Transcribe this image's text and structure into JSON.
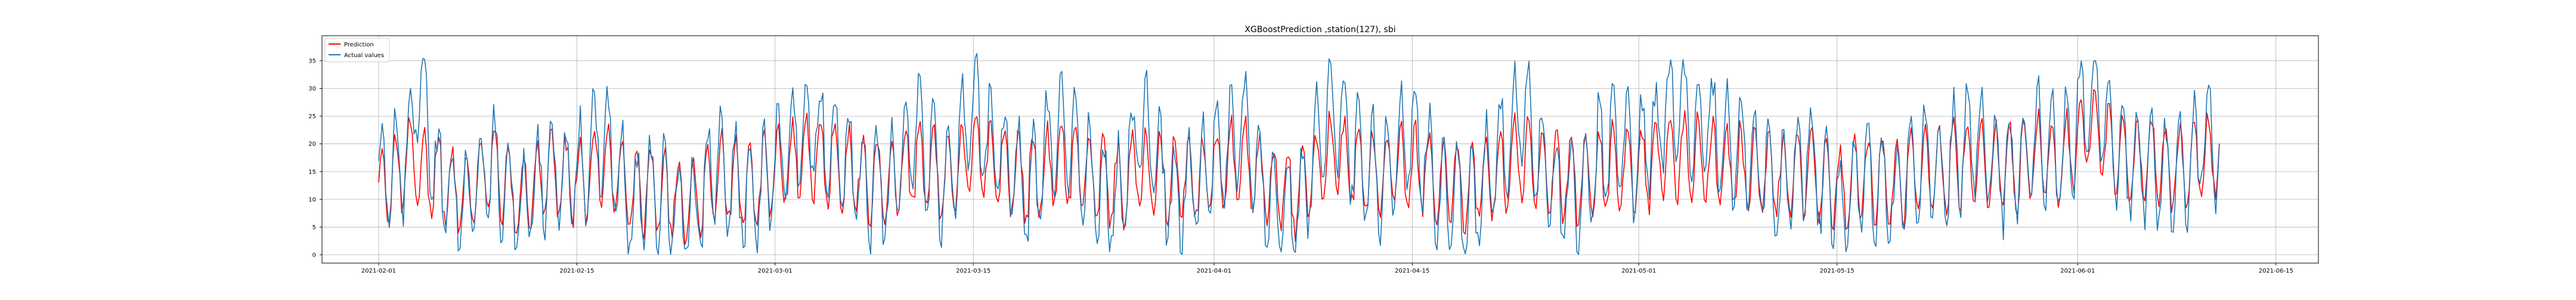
{
  "chart_data": {
    "type": "line",
    "title": "XGBoostPrediction ,station(127), sbi",
    "xlabel": "",
    "ylabel": "",
    "x_range": [
      "2021-01-28",
      "2021-06-18"
    ],
    "ylim": [
      -1.5,
      39.5
    ],
    "y_ticks": [
      0,
      5,
      10,
      15,
      20,
      25,
      30,
      35
    ],
    "x_ticks": [
      "2021-02-01",
      "2021-02-15",
      "2021-03-01",
      "2021-03-15",
      "2021-04-01",
      "2021-04-15",
      "2021-05-01",
      "2021-05-15",
      "2021-06-01",
      "2021-06-15"
    ],
    "grid": true,
    "legend_position": "top-left",
    "data_start": "2021-02-01",
    "data_end": "2021-06-11",
    "series": [
      {
        "name": "Prediction",
        "color": "#ff0000",
        "points": [
          [
            "2021-02-01",
            11
          ],
          [
            "2021-02-03",
            17
          ],
          [
            "2021-02-05",
            14
          ],
          [
            "2021-02-07",
            10
          ],
          [
            "2021-02-09",
            16
          ],
          [
            "2021-02-11",
            9
          ],
          [
            "2021-02-13",
            15
          ],
          [
            "2021-02-15",
            13
          ],
          [
            "2021-02-17",
            17
          ],
          [
            "2021-02-19",
            11
          ],
          [
            "2021-02-21",
            12
          ],
          [
            "2021-02-23",
            9
          ],
          [
            "2021-02-25",
            15
          ],
          [
            "2021-02-27",
            12
          ],
          [
            "2021-03-01",
            15
          ],
          [
            "2021-03-03",
            18
          ],
          [
            "2021-03-05",
            16
          ],
          [
            "2021-03-07",
            14
          ],
          [
            "2021-03-09",
            13
          ],
          [
            "2021-03-11",
            17
          ],
          [
            "2021-03-13",
            14
          ],
          [
            "2021-03-15",
            18
          ],
          [
            "2021-03-17",
            16
          ],
          [
            "2021-03-19",
            13
          ],
          [
            "2021-03-21",
            17
          ],
          [
            "2021-03-23",
            15
          ],
          [
            "2021-03-25",
            12
          ],
          [
            "2021-03-27",
            16
          ],
          [
            "2021-03-29",
            13
          ],
          [
            "2021-04-01",
            15
          ],
          [
            "2021-04-03",
            17
          ],
          [
            "2021-04-05",
            12
          ],
          [
            "2021-04-07",
            11
          ],
          [
            "2021-04-09",
            18
          ],
          [
            "2021-04-11",
            16
          ],
          [
            "2021-04-13",
            14
          ],
          [
            "2021-04-15",
            17
          ],
          [
            "2021-04-17",
            13
          ],
          [
            "2021-04-19",
            12
          ],
          [
            "2021-04-21",
            15
          ],
          [
            "2021-04-23",
            18
          ],
          [
            "2021-04-25",
            14
          ],
          [
            "2021-04-27",
            13
          ],
          [
            "2021-04-29",
            16
          ],
          [
            "2021-05-01",
            15
          ],
          [
            "2021-05-03",
            18
          ],
          [
            "2021-05-05",
            17
          ],
          [
            "2021-05-07",
            16
          ],
          [
            "2021-05-09",
            15
          ],
          [
            "2021-05-11",
            14
          ],
          [
            "2021-05-13",
            15
          ],
          [
            "2021-05-15",
            12
          ],
          [
            "2021-05-17",
            14
          ],
          [
            "2021-05-19",
            13
          ],
          [
            "2021-05-21",
            15
          ],
          [
            "2021-05-23",
            16
          ],
          [
            "2021-05-25",
            17
          ],
          [
            "2021-05-27",
            15
          ],
          [
            "2021-05-29",
            18
          ],
          [
            "2021-05-31",
            17
          ],
          [
            "2021-06-02",
            24
          ],
          [
            "2021-06-04",
            18
          ],
          [
            "2021-06-06",
            17
          ],
          [
            "2021-06-08",
            15
          ],
          [
            "2021-06-10",
            18
          ],
          [
            "2021-06-11",
            17
          ]
        ]
      },
      {
        "name": "Actual values",
        "color": "#1f77b4",
        "points": [
          [
            "2021-02-01",
            12
          ],
          [
            "2021-02-02",
            16
          ],
          [
            "2021-02-03",
            18
          ],
          [
            "2021-02-04",
            33
          ],
          [
            "2021-02-05",
            14
          ],
          [
            "2021-02-07",
            8
          ],
          [
            "2021-02-09",
            16
          ],
          [
            "2021-02-11",
            7
          ],
          [
            "2021-02-13",
            16
          ],
          [
            "2021-02-15",
            14
          ],
          [
            "2021-02-17",
            22
          ],
          [
            "2021-02-19",
            8
          ],
          [
            "2021-02-21",
            13
          ],
          [
            "2021-02-23",
            6
          ],
          [
            "2021-02-25",
            18
          ],
          [
            "2021-02-27",
            10
          ],
          [
            "2021-03-01",
            17
          ],
          [
            "2021-03-03",
            24
          ],
          [
            "2021-03-05",
            18
          ],
          [
            "2021-03-07",
            14
          ],
          [
            "2021-03-09",
            11
          ],
          [
            "2021-03-11",
            24
          ],
          [
            "2021-03-13",
            12
          ],
          [
            "2021-03-15",
            26
          ],
          [
            "2021-03-17",
            18
          ],
          [
            "2021-03-19",
            10
          ],
          [
            "2021-03-21",
            25
          ],
          [
            "2021-03-23",
            14
          ],
          [
            "2021-03-25",
            8
          ],
          [
            "2021-03-27",
            24
          ],
          [
            "2021-03-29",
            10
          ],
          [
            "2021-04-01",
            16
          ],
          [
            "2021-04-03",
            24
          ],
          [
            "2021-04-05",
            8
          ],
          [
            "2021-04-07",
            7
          ],
          [
            "2021-04-09",
            28
          ],
          [
            "2021-04-11",
            18
          ],
          [
            "2021-04-13",
            12
          ],
          [
            "2021-04-15",
            24
          ],
          [
            "2021-04-17",
            10
          ],
          [
            "2021-04-19",
            8
          ],
          [
            "2021-04-21",
            18
          ],
          [
            "2021-04-23",
            26
          ],
          [
            "2021-04-25",
            12
          ],
          [
            "2021-04-27",
            10
          ],
          [
            "2021-04-29",
            22
          ],
          [
            "2021-05-01",
            17
          ],
          [
            "2021-05-03",
            26
          ],
          [
            "2021-05-05",
            24
          ],
          [
            "2021-05-07",
            20
          ],
          [
            "2021-05-09",
            18
          ],
          [
            "2021-05-11",
            12
          ],
          [
            "2021-05-13",
            18
          ],
          [
            "2021-05-15",
            8
          ],
          [
            "2021-05-17",
            14
          ],
          [
            "2021-05-19",
            10
          ],
          [
            "2021-05-21",
            16
          ],
          [
            "2021-05-23",
            17
          ],
          [
            "2021-05-25",
            22
          ],
          [
            "2021-05-27",
            14
          ],
          [
            "2021-05-29",
            20
          ],
          [
            "2021-05-31",
            18
          ],
          [
            "2021-06-02",
            30
          ],
          [
            "2021-06-04",
            18
          ],
          [
            "2021-06-06",
            16
          ],
          [
            "2021-06-08",
            12
          ],
          [
            "2021-06-10",
            22
          ],
          [
            "2021-06-11",
            18
          ]
        ]
      }
    ]
  }
}
